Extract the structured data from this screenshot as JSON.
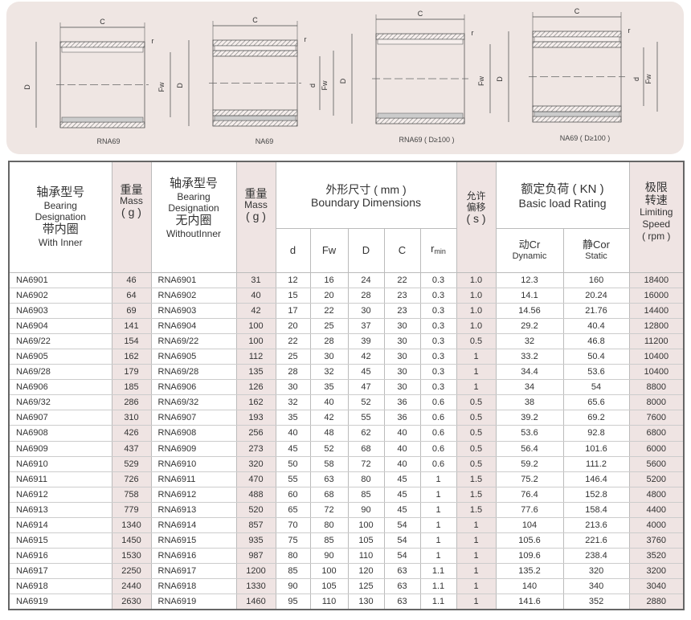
{
  "diagrams": [
    {
      "label": "RNA69"
    },
    {
      "label": "NA69"
    },
    {
      "label": "RNA69 ( D≥100 )"
    },
    {
      "label": "NA69 ( D≥100 )"
    }
  ],
  "dimension_marks": {
    "c": "C",
    "d_outer": "D",
    "fw": "Fw",
    "d_inner": "d",
    "r": "r"
  },
  "header": {
    "with_inner_cn": "轴承型号",
    "with_inner_en": "Bearing Designation",
    "with_inner_cn2": "带内圈",
    "with_inner_en2": "With Inner",
    "mass_cn": "重量",
    "mass_en": "Mass",
    "mass_unit": "( g )",
    "without_inner_cn": "轴承型号",
    "without_inner_en": "Bearing Designation",
    "without_inner_cn2": "无内圈",
    "without_inner_en2": "WithoutInner",
    "boundary_cn": "外形尺寸 ( mm )",
    "boundary_en": "Boundary Dimensions",
    "offset_cn": "允许偏移",
    "offset_unit": "( s )",
    "load_cn": "额定负荷 ( KN )",
    "load_en": "Basic load Rating",
    "speed_cn": "极限转速",
    "speed_en": "Limiting Speed",
    "speed_unit": "( rpm )",
    "d": "d",
    "fw": "Fw",
    "D": "D",
    "C": "C",
    "r": "r",
    "r_sub": "min",
    "cr_cn": "动Cr",
    "cr_en": "Dynamic",
    "cor_cn": "静Cor",
    "cor_en": "Static"
  },
  "rows": [
    [
      "NA6901",
      "46",
      "RNA6901",
      "31",
      "12",
      "16",
      "24",
      "22",
      "0.3",
      "1.0",
      "12.3",
      "160",
      "18400"
    ],
    [
      "NA6902",
      "64",
      "RNA6902",
      "40",
      "15",
      "20",
      "28",
      "23",
      "0.3",
      "1.0",
      "14.1",
      "20.24",
      "16000"
    ],
    [
      "NA6903",
      "69",
      "RNA6903",
      "42",
      "17",
      "22",
      "30",
      "23",
      "0.3",
      "1.0",
      "14.56",
      "21.76",
      "14400"
    ],
    [
      "NA6904",
      "141",
      "RNA6904",
      "100",
      "20",
      "25",
      "37",
      "30",
      "0.3",
      "1.0",
      "29.2",
      "40.4",
      "12800"
    ],
    [
      "NA69/22",
      "154",
      "RNA69/22",
      "100",
      "22",
      "28",
      "39",
      "30",
      "0.3",
      "0.5",
      "32",
      "46.8",
      "11200"
    ],
    [
      "NA6905",
      "162",
      "RNA6905",
      "112",
      "25",
      "30",
      "42",
      "30",
      "0.3",
      "1",
      "33.2",
      "50.4",
      "10400"
    ],
    [
      "NA69/28",
      "179",
      "RNA69/28",
      "135",
      "28",
      "32",
      "45",
      "30",
      "0.3",
      "1",
      "34.4",
      "53.6",
      "10400"
    ],
    [
      "NA6906",
      "185",
      "RNA6906",
      "126",
      "30",
      "35",
      "47",
      "30",
      "0.3",
      "1",
      "34",
      "54",
      "8800"
    ],
    [
      "NA69/32",
      "286",
      "RNA69/32",
      "162",
      "32",
      "40",
      "52",
      "36",
      "0.6",
      "0.5",
      "38",
      "65.6",
      "8000"
    ],
    [
      "NA6907",
      "310",
      "RNA6907",
      "193",
      "35",
      "42",
      "55",
      "36",
      "0.6",
      "0.5",
      "39.2",
      "69.2",
      "7600"
    ],
    [
      "NA6908",
      "426",
      "RNA6908",
      "256",
      "40",
      "48",
      "62",
      "40",
      "0.6",
      "0.5",
      "53.6",
      "92.8",
      "6800"
    ],
    [
      "NA6909",
      "437",
      "RNA6909",
      "273",
      "45",
      "52",
      "68",
      "40",
      "0.6",
      "0.5",
      "56.4",
      "101.6",
      "6000"
    ],
    [
      "NA6910",
      "529",
      "RNA6910",
      "320",
      "50",
      "58",
      "72",
      "40",
      "0.6",
      "0.5",
      "59.2",
      "111.2",
      "5600"
    ],
    [
      "NA6911",
      "726",
      "RNA6911",
      "470",
      "55",
      "63",
      "80",
      "45",
      "1",
      "1.5",
      "75.2",
      "146.4",
      "5200"
    ],
    [
      "NA6912",
      "758",
      "RNA6912",
      "488",
      "60",
      "68",
      "85",
      "45",
      "1",
      "1.5",
      "76.4",
      "152.8",
      "4800"
    ],
    [
      "NA6913",
      "779",
      "RNA6913",
      "520",
      "65",
      "72",
      "90",
      "45",
      "1",
      "1.5",
      "77.6",
      "158.4",
      "4400"
    ],
    [
      "NA6914",
      "1340",
      "RNA6914",
      "857",
      "70",
      "80",
      "100",
      "54",
      "1",
      "1",
      "104",
      "213.6",
      "4000"
    ],
    [
      "NA6915",
      "1450",
      "RNA6915",
      "935",
      "75",
      "85",
      "105",
      "54",
      "1",
      "1",
      "105.6",
      "221.6",
      "3760"
    ],
    [
      "NA6916",
      "1530",
      "RNA6916",
      "987",
      "80",
      "90",
      "110",
      "54",
      "1",
      "1",
      "109.6",
      "238.4",
      "3520"
    ],
    [
      "NA6917",
      "2250",
      "RNA6917",
      "1200",
      "85",
      "100",
      "120",
      "63",
      "1.1",
      "1",
      "135.2",
      "320",
      "3200"
    ],
    [
      "NA6918",
      "2440",
      "RNA6918",
      "1330",
      "90",
      "105",
      "125",
      "63",
      "1.1",
      "1",
      "140",
      "340",
      "3040"
    ],
    [
      "NA6919",
      "2630",
      "RNA6919",
      "1460",
      "95",
      "110",
      "130",
      "63",
      "1.1",
      "1",
      "141.6",
      "352",
      "2880"
    ]
  ],
  "colors": {
    "panel": "#efe6e3",
    "shaded_column": "#efe4e3",
    "border": "#666666"
  }
}
